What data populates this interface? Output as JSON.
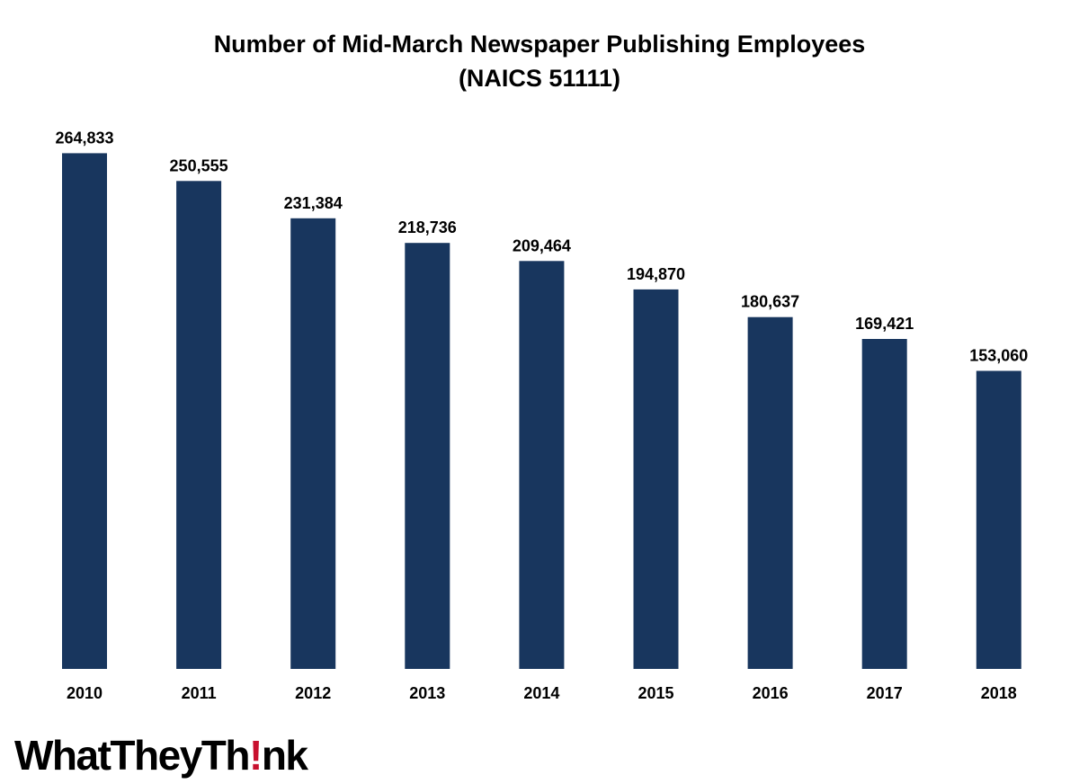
{
  "chart_data": {
    "type": "bar",
    "title": "Number of Mid-March Newspaper Publishing Employees",
    "subtitle": "(NAICS 51111)",
    "categories": [
      "2010",
      "2011",
      "2012",
      "2013",
      "2014",
      "2015",
      "2016",
      "2017",
      "2018"
    ],
    "values": [
      264833,
      250555,
      231384,
      218736,
      209464,
      194870,
      180637,
      169421,
      153060
    ],
    "value_labels": [
      "264,833",
      "250,555",
      "231,384",
      "218,736",
      "209,464",
      "194,870",
      "180,637",
      "169,421",
      "153,060"
    ],
    "xlabel": "",
    "ylabel": "",
    "ylim": [
      0,
      265000
    ],
    "grid": false,
    "legend": "none",
    "bar_color": "#18365e"
  },
  "logo": {
    "part1": "WhatTheyTh",
    "part2": "!",
    "part3": "nk",
    "accent_color": "#c8102e"
  }
}
